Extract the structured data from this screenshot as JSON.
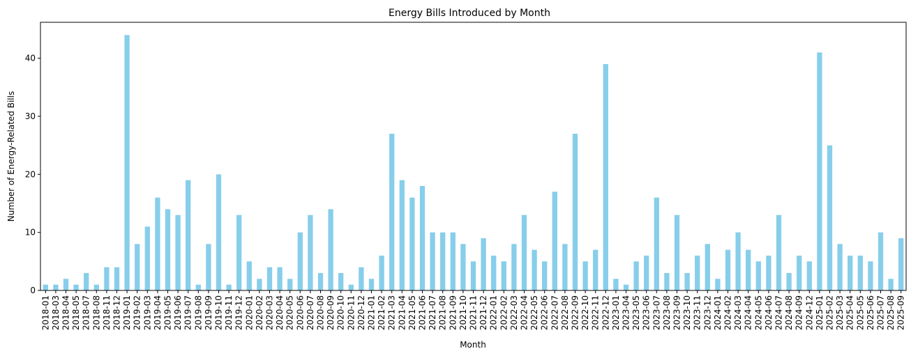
{
  "chart_data": {
    "type": "bar",
    "title": "Energy Bills Introduced by Month",
    "xlabel": "Month",
    "ylabel": "Number of Energy-Related Bills",
    "ylim": [
      0,
      46.2
    ],
    "yticks": [
      0,
      10,
      20,
      30,
      40
    ],
    "grid": false,
    "bar_color": "#87CEEB",
    "categories": [
      "2018-01",
      "2018-03",
      "2018-04",
      "2018-05",
      "2018-07",
      "2018-08",
      "2018-11",
      "2018-12",
      "2019-01",
      "2019-02",
      "2019-03",
      "2019-04",
      "2019-05",
      "2019-06",
      "2019-07",
      "2019-08",
      "2019-09",
      "2019-10",
      "2019-11",
      "2019-12",
      "2020-01",
      "2020-02",
      "2020-03",
      "2020-04",
      "2020-05",
      "2020-06",
      "2020-07",
      "2020-08",
      "2020-09",
      "2020-10",
      "2020-11",
      "2020-12",
      "2021-01",
      "2021-02",
      "2021-03",
      "2021-04",
      "2021-05",
      "2021-06",
      "2021-07",
      "2021-08",
      "2021-09",
      "2021-10",
      "2021-11",
      "2021-12",
      "2022-01",
      "2022-02",
      "2022-03",
      "2022-04",
      "2022-05",
      "2022-06",
      "2022-07",
      "2022-08",
      "2022-09",
      "2022-10",
      "2022-11",
      "2022-12",
      "2023-01",
      "2023-04",
      "2023-05",
      "2023-06",
      "2023-07",
      "2023-08",
      "2023-09",
      "2023-10",
      "2023-11",
      "2023-12",
      "2024-01",
      "2024-02",
      "2024-03",
      "2024-04",
      "2024-05",
      "2024-06",
      "2024-07",
      "2024-08",
      "2024-09",
      "2024-12",
      "2025-01",
      "2025-02",
      "2025-03",
      "2025-04",
      "2025-05",
      "2025-06",
      "2025-07",
      "2025-08",
      "2025-09"
    ],
    "values": [
      1,
      1,
      2,
      1,
      3,
      1,
      4,
      4,
      44,
      8,
      11,
      16,
      14,
      13,
      19,
      1,
      8,
      20,
      1,
      13,
      5,
      2,
      4,
      4,
      2,
      10,
      13,
      3,
      14,
      3,
      1,
      4,
      2,
      6,
      27,
      19,
      16,
      18,
      10,
      10,
      10,
      8,
      5,
      9,
      6,
      5,
      8,
      13,
      7,
      5,
      17,
      8,
      27,
      5,
      7,
      39,
      2,
      1,
      5,
      6,
      16,
      3,
      13,
      3,
      6,
      8,
      2,
      7,
      10,
      7,
      5,
      6,
      13,
      3,
      6,
      5,
      41,
      25,
      8,
      6,
      6,
      5,
      10,
      2,
      9
    ]
  }
}
